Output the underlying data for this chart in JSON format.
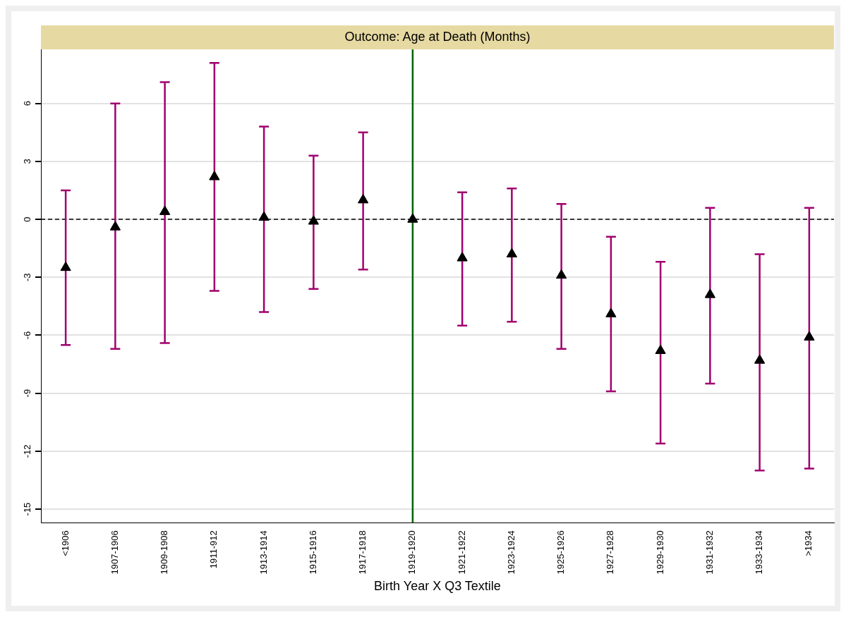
{
  "chart_data": {
    "type": "scatter",
    "title": "Outcome: Age at Death (Months)",
    "xlabel": "Birth Year X Q3 Textile",
    "categories": [
      "<1906",
      "1907-1906",
      "1909-1908",
      "1911-912",
      "1913-1914",
      "1915-1916",
      "1917-1918",
      "1919-1920",
      "1921-1922",
      "1923-1924",
      "1925-1926",
      "1927-1928",
      "1929-1930",
      "1931-1932",
      "1933-1934",
      ">1934"
    ],
    "series": [
      {
        "color": "#000000",
        "values": [
          -2.5,
          -0.4,
          0.4,
          2.2,
          0.1,
          -0.1,
          1.0,
          0,
          -2.0,
          -1.8,
          -2.9,
          -4.9,
          -6.8,
          -3.9,
          -7.3,
          -6.1
        ],
        "errors": [
          [
            -6.5,
            1.5
          ],
          [
            -6.7,
            6.0
          ],
          [
            -6.4,
            7.1
          ],
          [
            -3.7,
            8.1
          ],
          [
            -4.8,
            4.8
          ],
          [
            -3.6,
            3.3
          ],
          [
            -2.6,
            4.5
          ],
          null,
          [
            -5.5,
            1.4
          ],
          [
            -5.3,
            1.6
          ],
          [
            -6.7,
            0.8
          ],
          [
            -8.9,
            -0.9
          ],
          [
            -11.6,
            -2.2
          ],
          [
            -8.5,
            0.6
          ],
          [
            -13.0,
            -1.8
          ],
          [
            -12.9,
            0.6
          ]
        ]
      }
    ],
    "marker": "triangle",
    "ylim": [
      -15.7,
      8.8
    ],
    "yticks": [
      -15,
      -12,
      -9,
      -6,
      -3,
      0,
      3,
      6
    ],
    "grid": "y",
    "legend": false,
    "ref_lines": [
      {
        "axis": "y",
        "value": 0,
        "color": "#000000",
        "line_style": "dashed"
      },
      {
        "axis": "x",
        "value": "1919-1920",
        "color": "#006400",
        "line_style": "solid"
      }
    ]
  }
}
